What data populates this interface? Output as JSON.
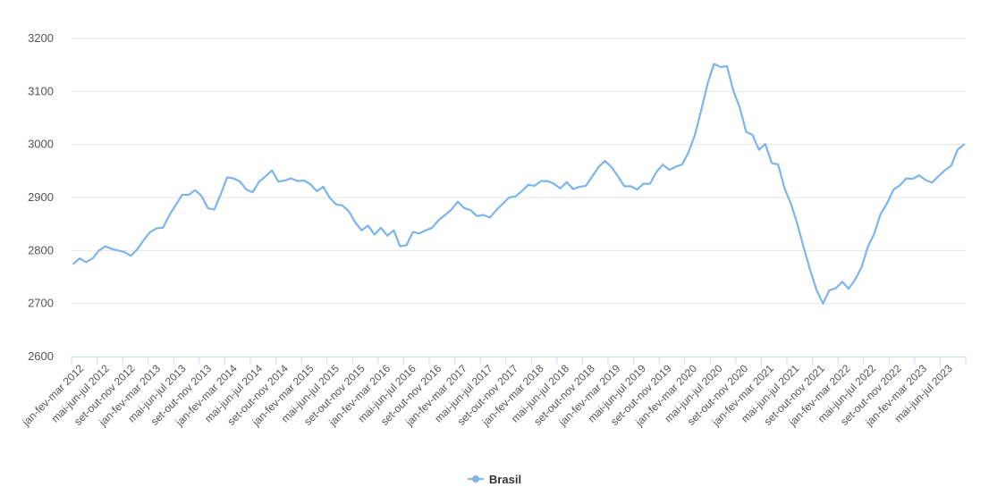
{
  "chart_data": {
    "type": "line",
    "x_tick_labels": [
      "jan-fev-mar 2012",
      "mai-jun-jul 2012",
      "set-out-nov 2012",
      "jan-fev-mar 2013",
      "mai-jun-jul 2013",
      "set-out-nov 2013",
      "jan-fev-mar 2014",
      "mai-jun-jul 2014",
      "set-out-nov 2014",
      "jan-fev-mar 2015",
      "mai-jun-jul 2015",
      "set-out-nov 2015",
      "jan-fev-mar 2016",
      "mai-jun-jul 2016",
      "set-out-nov 2016",
      "jan-fev-mar 2017",
      "mai-jun-jul 2017",
      "set-out-nov 2017",
      "jan-fev-mar 2018",
      "mai-jun-jul 2018",
      "set-out-nov 2018",
      "jan-fev-mar 2019",
      "mai-jun-jul 2019",
      "set-out-nov 2019",
      "jan-fev-mar 2020",
      "mai-jun-jul 2020",
      "set-out-nov 2020",
      "jan-fev-mar 2021",
      "mai-jun-jul 2021",
      "set-out-nov 2021",
      "jan-fev-mar 2022",
      "mai-jun-jul 2022",
      "set-out-nov 2022",
      "jan-fev-mar 2023",
      "mai-jun-jul 2023"
    ],
    "y_ticks": [
      2600,
      2700,
      2800,
      2900,
      3000,
      3100,
      3200
    ],
    "ylim": [
      2600,
      3200
    ],
    "grid": true,
    "legend_position": "bottom-center",
    "series": [
      {
        "name": "Brasil",
        "color": "#7cb5ec",
        "values": [
          2775,
          2785,
          2778,
          2785,
          2800,
          2808,
          2803,
          2800,
          2797,
          2790,
          2803,
          2820,
          2835,
          2842,
          2843,
          2867,
          2886,
          2905,
          2905,
          2914,
          2903,
          2880,
          2877,
          2906,
          2938,
          2936,
          2930,
          2915,
          2910,
          2930,
          2940,
          2951,
          2930,
          2932,
          2936,
          2931,
          2932,
          2925,
          2912,
          2920,
          2900,
          2887,
          2885,
          2874,
          2853,
          2838,
          2847,
          2830,
          2843,
          2828,
          2838,
          2808,
          2810,
          2835,
          2832,
          2838,
          2843,
          2857,
          2867,
          2877,
          2892,
          2880,
          2876,
          2865,
          2867,
          2862,
          2876,
          2888,
          2900,
          2902,
          2912,
          2924,
          2922,
          2931,
          2931,
          2926,
          2917,
          2929,
          2916,
          2920,
          2922,
          2940,
          2958,
          2969,
          2957,
          2940,
          2921,
          2921,
          2915,
          2926,
          2926,
          2948,
          2962,
          2952,
          2958,
          2962,
          2985,
          3018,
          3065,
          3115,
          3152,
          3146,
          3148,
          3102,
          3070,
          3024,
          3018,
          2990,
          3001,
          2965,
          2962,
          2917,
          2888,
          2850,
          2805,
          2763,
          2725,
          2700,
          2725,
          2729,
          2741,
          2728,
          2745,
          2768,
          2807,
          2832,
          2869,
          2889,
          2915,
          2923,
          2936,
          2935,
          2942,
          2933,
          2928,
          2940,
          2951,
          2960,
          2990,
          3000
        ]
      }
    ]
  }
}
